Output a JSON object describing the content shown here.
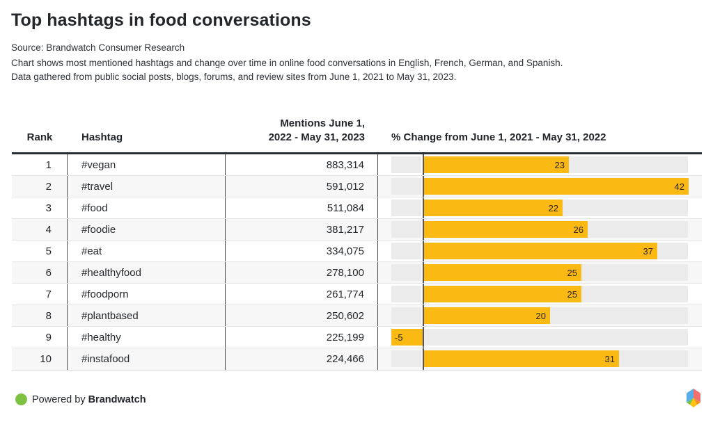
{
  "header": {
    "title": "Top hashtags in food conversations",
    "source": "Source: Brandwatch Consumer Research",
    "description_line1": "Chart shows most mentioned hashtags and change over time in online food conversations in English, French, German, and Spanish.",
    "description_line2": "Data gathered from public social posts, blogs, forums, and review sites from June 1, 2021 to May 31, 2023."
  },
  "table": {
    "col_rank": "Rank",
    "col_hashtag": "Hashtag",
    "col_mentions": "Mentions June 1,\n2022 - May 31, 2023",
    "col_change": "% Change from June 1, 2021 - May 31, 2022"
  },
  "rows": [
    {
      "rank": "1",
      "hashtag": "#vegan",
      "mentions": "883,314",
      "change": 23,
      "change_label": "23"
    },
    {
      "rank": "2",
      "hashtag": "#travel",
      "mentions": "591,012",
      "change": 42,
      "change_label": "42"
    },
    {
      "rank": "3",
      "hashtag": "#food",
      "mentions": "511,084",
      "change": 22,
      "change_label": "22"
    },
    {
      "rank": "4",
      "hashtag": "#foodie",
      "mentions": "381,217",
      "change": 26,
      "change_label": "26"
    },
    {
      "rank": "5",
      "hashtag": "#eat",
      "mentions": "334,075",
      "change": 37,
      "change_label": "37"
    },
    {
      "rank": "6",
      "hashtag": "#healthyfood",
      "mentions": "278,100",
      "change": 25,
      "change_label": "25"
    },
    {
      "rank": "7",
      "hashtag": "#foodporn",
      "mentions": "261,774",
      "change": 25,
      "change_label": "25"
    },
    {
      "rank": "8",
      "hashtag": "#plantbased",
      "mentions": "250,602",
      "change": 20,
      "change_label": "20"
    },
    {
      "rank": "9",
      "hashtag": "#healthy",
      "mentions": "225,199",
      "change": -5,
      "change_label": "-5"
    },
    {
      "rank": "10",
      "hashtag": "#instafood",
      "mentions": "224,466",
      "change": 31,
      "change_label": "31"
    }
  ],
  "chart_data": {
    "type": "bar",
    "orientation": "horizontal",
    "title": "Top hashtags in food conversations",
    "categories": [
      "#vegan",
      "#travel",
      "#food",
      "#foodie",
      "#eat",
      "#healthyfood",
      "#foodporn",
      "#plantbased",
      "#healthy",
      "#instafood"
    ],
    "series": [
      {
        "name": "Mentions June 1, 2022 - May 31, 2023",
        "values": [
          883314,
          591012,
          511084,
          381217,
          334075,
          278100,
          261774,
          250602,
          225199,
          224466
        ]
      },
      {
        "name": "% Change from June 1, 2021 - May 31, 2022",
        "values": [
          23,
          42,
          22,
          26,
          37,
          25,
          25,
          20,
          -5,
          31
        ]
      }
    ],
    "xlim": [
      -5,
      42
    ],
    "grid": false,
    "legend": "none",
    "bar_color": "#FBB914",
    "track_color": "#EBEBEB"
  },
  "footer": {
    "powered_by": "Powered by",
    "brand": "Brandwatch",
    "dot_color": "#7DC242",
    "logo_name": "brandwatch-hexagon-logo",
    "logo_colors": {
      "blue": "#56ADE8",
      "red": "#F2706D",
      "orange": "#F7941D",
      "yellow": "#FFC20E",
      "green": "#7DC242"
    }
  }
}
